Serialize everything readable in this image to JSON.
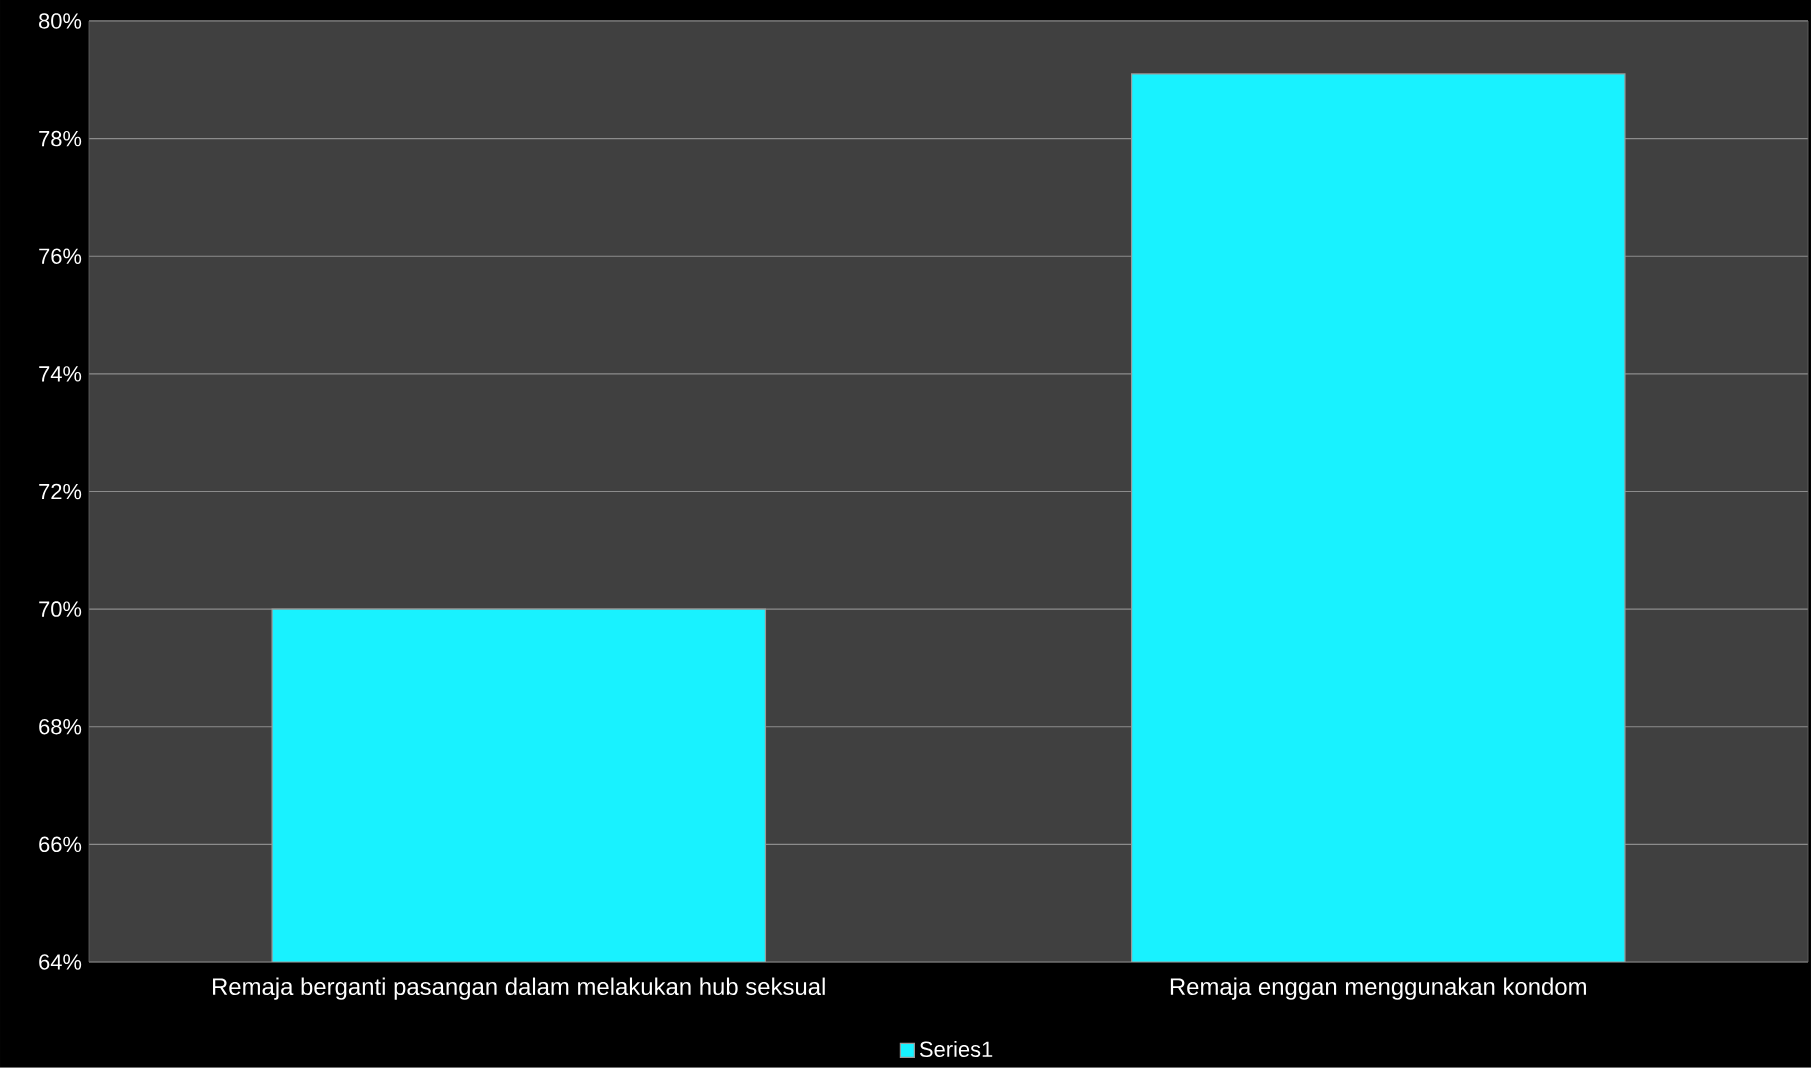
{
  "chart_data": {
    "type": "bar",
    "categories": [
      "Remaja berganti pasangan dalam melakukan hub seksual",
      "Remaja enggan menggunakan kondom"
    ],
    "series": [
      {
        "name": "Series1",
        "color": "#18f2ff",
        "values": [
          70.0,
          79.1
        ]
      }
    ],
    "ylim": [
      64,
      80
    ],
    "yticks": [
      {
        "value": 64,
        "label": "64%"
      },
      {
        "value": 66,
        "label": "66%"
      },
      {
        "value": 68,
        "label": "68%"
      },
      {
        "value": 70,
        "label": "70%"
      },
      {
        "value": 72,
        "label": "72%"
      },
      {
        "value": 74,
        "label": "74%"
      },
      {
        "value": 76,
        "label": "76%"
      },
      {
        "value": 78,
        "label": "78%"
      },
      {
        "value": 80,
        "label": "80%"
      }
    ],
    "grid": "y",
    "legend": "bottom"
  }
}
